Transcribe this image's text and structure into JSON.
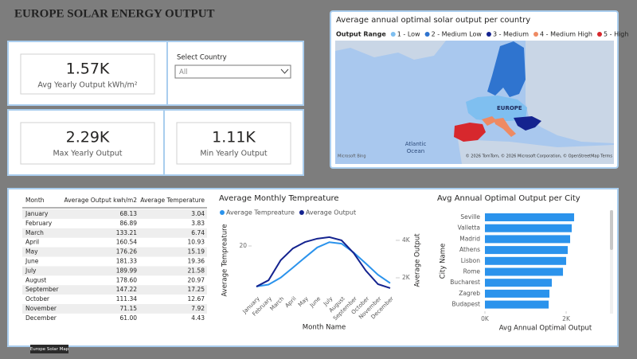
{
  "header": {
    "title": "EUROPE SOLAR ENERGY OUTPUT"
  },
  "cards": [
    {
      "value": "1.57K",
      "label": "Avg Yearly Output kWh/m²"
    },
    {
      "value": "2.29K",
      "label": "Max Yearly Output"
    },
    {
      "value": "1.11K",
      "label": "Min Yearly Output"
    }
  ],
  "slicer": {
    "label": "Select Country",
    "selected": "All"
  },
  "map": {
    "title": "Average annual optimal solar output per country",
    "legend": {
      "title": "Output Range",
      "items": [
        {
          "label": "1 - Low",
          "color": "#7fbff0"
        },
        {
          "label": "2 - Medium Low",
          "color": "#2f74cf"
        },
        {
          "label": "3 - Medium",
          "color": "#14238f"
        },
        {
          "label": "4 - Medium High",
          "color": "#ee8a63"
        },
        {
          "label": "5 - High",
          "color": "#d7282d"
        }
      ]
    },
    "region_label": "EUROPE",
    "ocean_label": [
      "Atlantic",
      "Ocean"
    ],
    "brand": "Microsoft Bing",
    "attribution": "© 2026 TomTom, © 2026 Microsoft Corporation, © OpenStreetMap Terms"
  },
  "table": {
    "columns": [
      "Month",
      "Average Output kwh/m2",
      "Average Temperature"
    ],
    "rows": [
      [
        "January",
        "68.13",
        "3.04"
      ],
      [
        "February",
        "86.89",
        "3.83"
      ],
      [
        "March",
        "133.21",
        "6.74"
      ],
      [
        "April",
        "160.54",
        "10.93"
      ],
      [
        "May",
        "176.26",
        "15.19"
      ],
      [
        "June",
        "181.33",
        "19.36"
      ],
      [
        "July",
        "189.99",
        "21.58"
      ],
      [
        "August",
        "178.60",
        "20.97"
      ],
      [
        "September",
        "147.22",
        "17.25"
      ],
      [
        "October",
        "111.34",
        "12.67"
      ],
      [
        "November",
        "71.15",
        "7.92"
      ],
      [
        "December",
        "61.00",
        "4.43"
      ]
    ]
  },
  "chart_data": [
    {
      "type": "line",
      "title": "Average Monthly Tempreature",
      "x_label": "Month Name",
      "y_label": "Average Tempreature",
      "y2_label": "Average Output",
      "categories": [
        "January",
        "February",
        "March",
        "April",
        "May",
        "June",
        "July",
        "August",
        "September",
        "October",
        "November",
        "December"
      ],
      "series": [
        {
          "name": "Average Tempreature",
          "color": "#2b93ec",
          "values": [
            3.04,
            3.83,
            6.74,
            10.93,
            15.19,
            19.36,
            21.58,
            20.97,
            17.25,
            12.67,
            7.92,
            4.43
          ]
        },
        {
          "name": "Average Output",
          "color": "#14238f",
          "axis": "y2",
          "values": [
            1530,
            1870,
            2940,
            3570,
            3910,
            4090,
            4170,
            4000,
            3320,
            2380,
            1660,
            1450
          ]
        }
      ],
      "ylim": [
        0,
        28
      ],
      "yticks": [
        20
      ],
      "y2lim": [
        1150,
        4720
      ],
      "y2ticks": [
        {
          "value": 2000,
          "label": "2K"
        },
        {
          "value": 4000,
          "label": "4K"
        }
      ]
    },
    {
      "type": "hbar",
      "title": "Avg Annual Optimal Output per City",
      "x_label": "Avg Annual Optimal Output",
      "y_label": "City Name",
      "color": "#2b93ec",
      "categories": [
        "Seville",
        "Valletta",
        "Madrid",
        "Athens",
        "Lisbon",
        "Rome",
        "Bucharest",
        "Zagreb",
        "Budapest"
      ],
      "values": [
        2196,
        2137,
        2098,
        2039,
        2000,
        1922,
        1647,
        1588,
        1569
      ],
      "xlim": [
        0,
        2960
      ],
      "xticks": [
        {
          "value": 0,
          "label": "0K"
        },
        {
          "value": 2000,
          "label": "2K"
        }
      ]
    }
  ],
  "tooltip": "Europe Solar Map"
}
